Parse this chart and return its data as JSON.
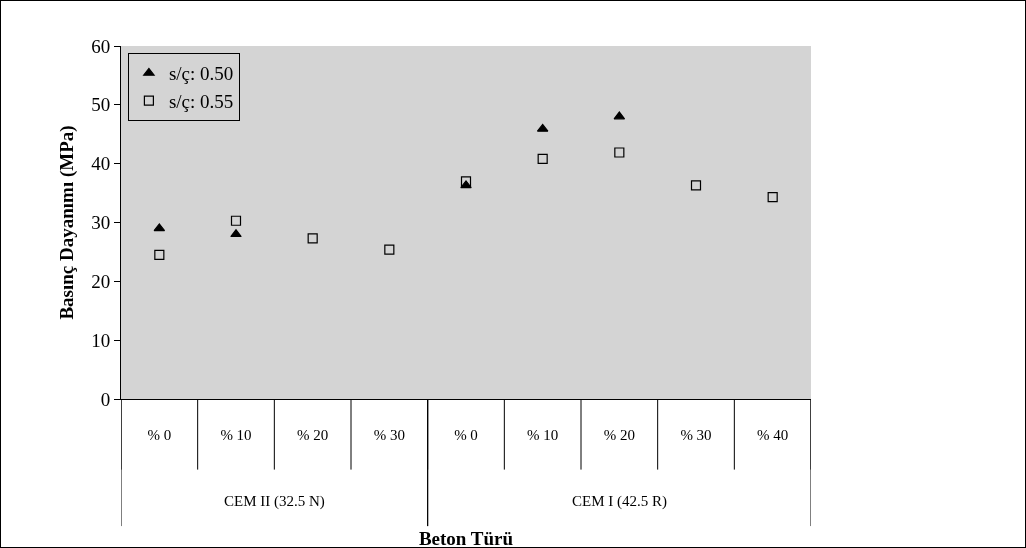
{
  "chart_data": {
    "type": "scatter",
    "xlabel": "Beton Türü",
    "ylabel": "Basınç Dayanımı (MPa)",
    "categories": [
      "% 0",
      "% 10",
      "% 20",
      "% 30",
      "% 0",
      "% 10",
      "% 20",
      "% 30",
      "% 40"
    ],
    "series": [
      {
        "name": "s/ç: 0.50",
        "color": "#000000",
        "marker": "triangle",
        "values": [
          29.0,
          28.0,
          null,
          null,
          36.3,
          45.9,
          48.0,
          null,
          null
        ]
      },
      {
        "name": "s/ç: 0.55",
        "color": "#000000",
        "marker": "square",
        "values": [
          24.5,
          30.3,
          27.3,
          25.4,
          37.0,
          40.8,
          41.9,
          36.3,
          34.3
        ]
      }
    ],
    "annotations": [
      "CEM II (32.5 N)",
      "CEM I (42.5 R)"
    ],
    "ylim": [
      0,
      60
    ],
    "yticks": [
      0,
      10,
      20,
      30,
      40,
      50,
      60
    ],
    "grid": false,
    "legend": "top left"
  }
}
